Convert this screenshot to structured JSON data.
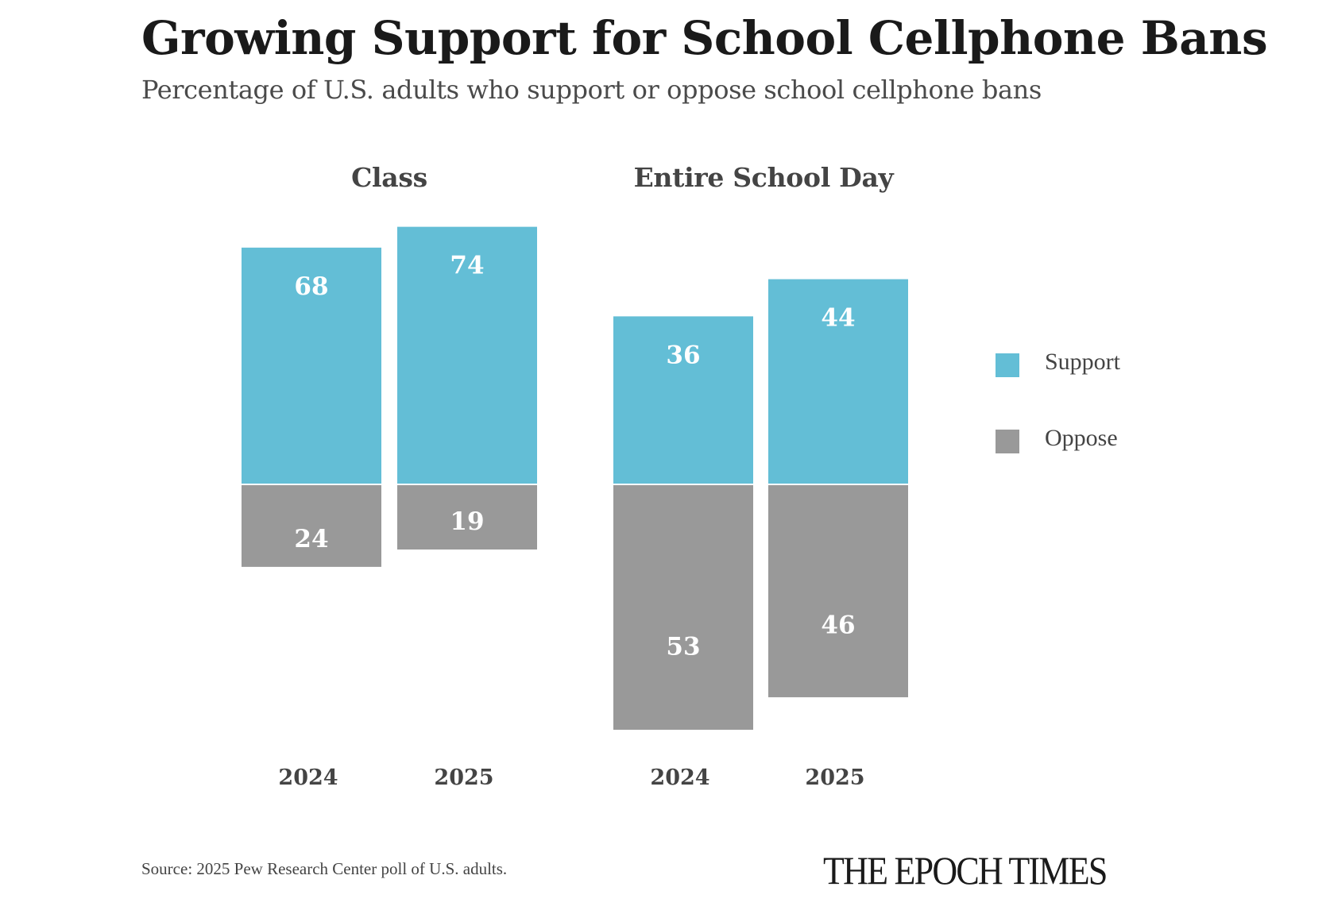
{
  "header": {
    "title": "Growing Support for School Cellphone Bans",
    "subtitle": "Percentage of U.S. adults who support or oppose school cellphone bans"
  },
  "colors": {
    "support": "#63BED6",
    "oppose": "#999999",
    "label_text": "#ffffff",
    "axis_text": "#444444"
  },
  "chart_data": [
    {
      "type": "bar",
      "stacked": "diverging",
      "title": "Class",
      "categories": [
        "2024",
        "2025"
      ],
      "series": [
        {
          "name": "Support",
          "values": [
            68,
            74
          ]
        },
        {
          "name": "Oppose",
          "values": [
            24,
            19
          ]
        }
      ],
      "xlabel": "",
      "ylabel": "",
      "grid": false
    },
    {
      "type": "bar",
      "stacked": "diverging",
      "title": "Entire School Day",
      "categories": [
        "2024",
        "2025"
      ],
      "series": [
        {
          "name": "Support",
          "values": [
            36,
            44
          ]
        },
        {
          "name": "Oppose",
          "values": [
            53,
            46
          ]
        }
      ],
      "xlabel": "",
      "ylabel": "",
      "grid": false
    }
  ],
  "legend": {
    "placement": "right",
    "items": [
      {
        "label": "Support"
      },
      {
        "label": "Oppose"
      }
    ]
  },
  "footer": {
    "source": "Source: 2025 Pew Research Center poll of U.S. adults.",
    "logo": "THE EPOCH TIMES"
  }
}
